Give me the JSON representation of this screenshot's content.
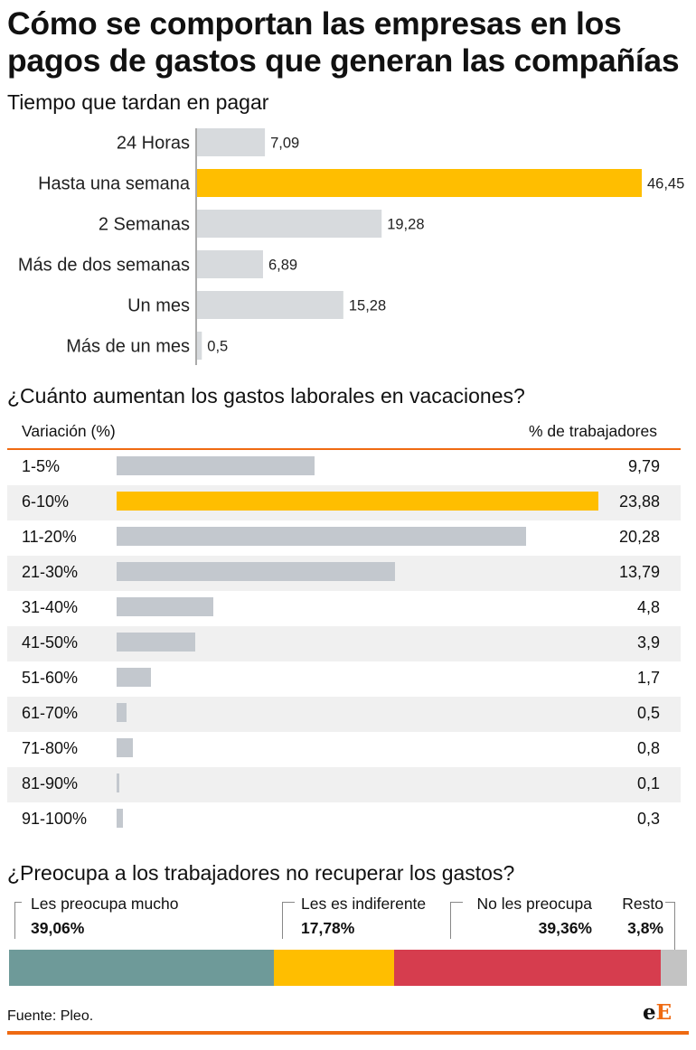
{
  "title": "Cómo se comportan las empresas en los pagos de gastos que generan las compañías",
  "section1_title": "Tiempo que tardan en pagar",
  "section2_title": "¿Cuánto aumentan los gastos laborales en vacaciones?",
  "section3_title": "¿Preocupa a los trabajadores no recuperar los gastos?",
  "source": "Fuente: Pleo.",
  "logo": {
    "part1": "e",
    "part2": "E"
  },
  "colors": {
    "highlight": "#ffbe00",
    "bar_gray1": "#d7dadd",
    "bar_gray2": "#c3c8ce",
    "accent": "#ef6a12"
  },
  "chart_data": [
    {
      "type": "bar",
      "orientation": "horizontal",
      "title": "Tiempo que tardan en pagar",
      "categories": [
        "24 Horas",
        "Hasta una semana",
        "2 Semanas",
        "Más de dos semanas",
        "Un mes",
        "Más de un mes"
      ],
      "values": [
        7.09,
        46.45,
        19.28,
        6.89,
        15.28,
        0.5
      ],
      "value_labels": [
        "7,09",
        "46,45",
        "19,28",
        "6,89",
        "15,28",
        "0,5"
      ],
      "highlight_index": 1
    },
    {
      "type": "bar",
      "orientation": "horizontal",
      "title": "¿Cuánto aumentan los gastos laborales en vacaciones?",
      "xlabel": "Variación (%)",
      "ylabel": "% de trabajadores",
      "categories": [
        "1-5%",
        "6-10%",
        "11-20%",
        "21-30%",
        "31-40%",
        "41-50%",
        "51-60%",
        "61-70%",
        "71-80%",
        "81-90%",
        "91-100%"
      ],
      "values": [
        9.79,
        23.88,
        20.28,
        13.79,
        4.8,
        3.9,
        1.7,
        0.5,
        0.8,
        0.1,
        0.3
      ],
      "value_labels": [
        "9,79",
        "23,88",
        "20,28",
        "13,79",
        "4,8",
        "3,9",
        "1,7",
        "0,5",
        "0,8",
        "0,1",
        "0,3"
      ],
      "highlight_index": 1
    },
    {
      "type": "bar",
      "orientation": "stacked-horizontal",
      "title": "¿Preocupa a los trabajadores no recuperar los gastos?",
      "categories": [
        "Les preocupa mucho",
        "Les es indiferente",
        "No les preocupa",
        "Resto"
      ],
      "values": [
        39.06,
        17.78,
        39.36,
        3.8
      ],
      "value_labels": [
        "39,06%",
        "17,78%",
        "39,36%",
        "3,8%"
      ],
      "colors": [
        "#6e9a99",
        "#ffbe00",
        "#d63d4e",
        "#c3c3c3"
      ]
    }
  ]
}
